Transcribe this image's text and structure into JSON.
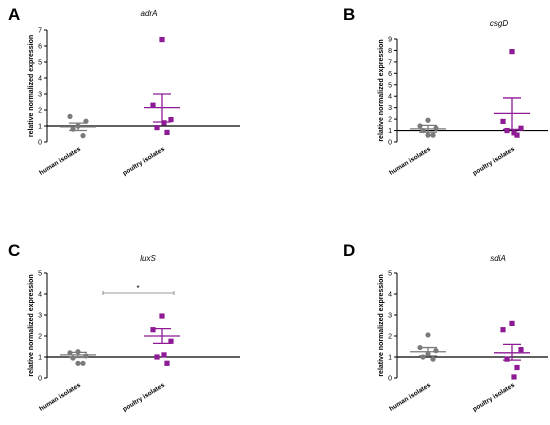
{
  "colors": {
    "human": "#7a7a7a",
    "poultry": "#8e1a96",
    "axis": "#000000",
    "bracket": "#777777"
  },
  "chart_data": [
    {
      "type": "scatter",
      "panel_label": "A",
      "title": "adrA",
      "ylabel": "relative normalized expression",
      "ylim": [
        0,
        7
      ],
      "yticks": [
        "0",
        "1",
        "2",
        "3",
        "4",
        "5",
        "6",
        "7"
      ],
      "reference_line": 1,
      "categories": [
        "human isolates",
        "poultry isolates"
      ],
      "series": [
        {
          "category": "human isolates",
          "marker": "circle",
          "values": [
            1.0,
            1.6,
            1.3,
            0.8,
            0.4,
            1.0
          ],
          "mean": 0.95,
          "sem_low": 0.72,
          "sem_high": 1.18
        },
        {
          "category": "poultry isolates",
          "marker": "square",
          "values": [
            6.4,
            2.3,
            1.4,
            0.9,
            0.6,
            1.2
          ],
          "mean": 2.15,
          "sem_low": 1.25,
          "sem_high": 3.0
        }
      ]
    },
    {
      "type": "scatter",
      "panel_label": "B",
      "title": "csgD",
      "ylabel": "relative normalized expression",
      "ylim": [
        0,
        9
      ],
      "yticks": [
        "0",
        "1",
        "2",
        "3",
        "4",
        "5",
        "6",
        "7",
        "8",
        "9"
      ],
      "reference_line": 1,
      "categories": [
        "human isolates",
        "poultry isolates"
      ],
      "series": [
        {
          "category": "human isolates",
          "marker": "circle",
          "values": [
            1.9,
            1.4,
            1.2,
            1.0,
            0.6,
            0.6
          ],
          "mean": 1.15,
          "sem_low": 0.85,
          "sem_high": 1.45
        },
        {
          "category": "poultry isolates",
          "marker": "square",
          "values": [
            7.9,
            1.8,
            1.2,
            1.0,
            0.6,
            0.8
          ],
          "mean": 2.5,
          "sem_low": 1.1,
          "sem_high": 3.85
        }
      ]
    },
    {
      "type": "scatter",
      "panel_label": "C",
      "title": "luxS",
      "ylabel": "relative normalized expression",
      "ylim": [
        0,
        5
      ],
      "yticks": [
        "0",
        "1",
        "2",
        "3",
        "4",
        "5"
      ],
      "reference_line": 1,
      "categories": [
        "human isolates",
        "poultry isolates"
      ],
      "significance": "*",
      "series": [
        {
          "category": "human isolates",
          "marker": "circle",
          "values": [
            1.25,
            1.2,
            1.05,
            0.95,
            0.7,
            0.7
          ],
          "mean": 1.1,
          "sem_low": 0.98,
          "sem_high": 1.22
        },
        {
          "category": "poultry isolates",
          "marker": "square",
          "values": [
            2.95,
            2.3,
            1.75,
            1.0,
            0.7,
            1.1
          ],
          "mean": 2.0,
          "sem_low": 1.65,
          "sem_high": 2.35
        }
      ]
    },
    {
      "type": "scatter",
      "panel_label": "D",
      "title": "sdiA",
      "ylabel": "relative normalized expression",
      "ylim": [
        0,
        5
      ],
      "yticks": [
        "0",
        "1",
        "2",
        "3",
        "4",
        "5"
      ],
      "reference_line": 1,
      "categories": [
        "human isolates",
        "poultry isolates"
      ],
      "series": [
        {
          "category": "human isolates",
          "marker": "circle",
          "values": [
            2.05,
            1.45,
            1.3,
            1.0,
            0.9,
            1.15
          ],
          "mean": 1.25,
          "sem_low": 1.05,
          "sem_high": 1.45
        },
        {
          "category": "poultry isolates",
          "marker": "square",
          "values": [
            2.6,
            2.3,
            1.35,
            0.9,
            0.5,
            0.05
          ],
          "mean": 1.2,
          "sem_low": 0.85,
          "sem_high": 1.6
        }
      ]
    }
  ]
}
